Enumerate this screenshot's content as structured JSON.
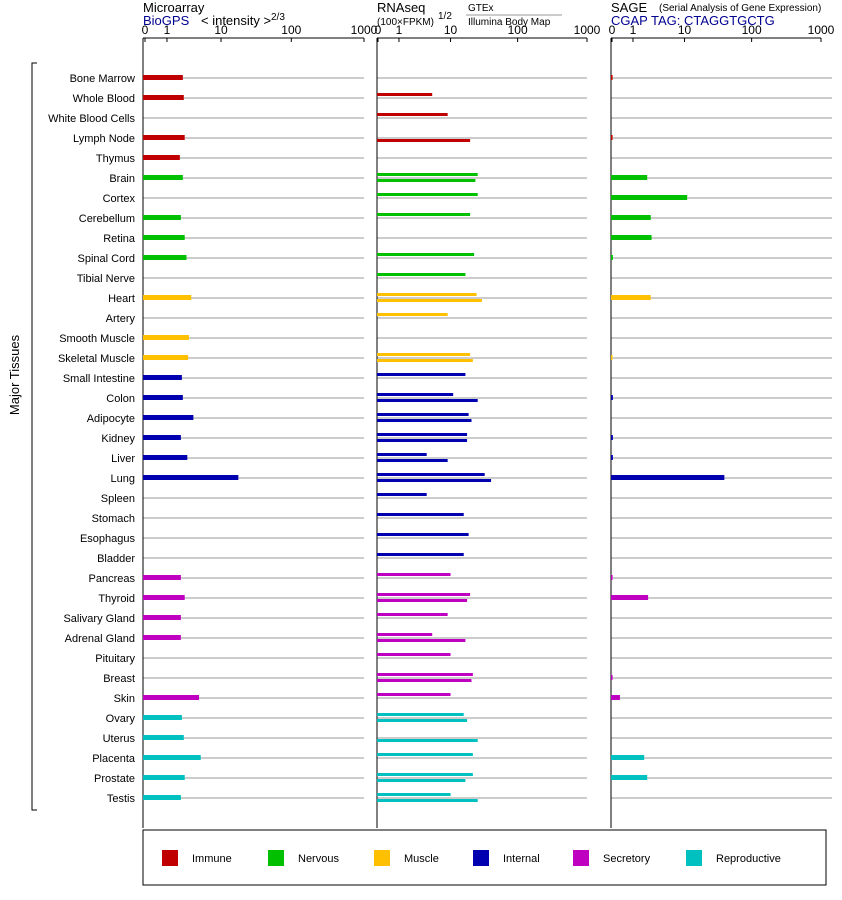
{
  "chart_data": {
    "type": "bar",
    "yaxis_label": "Major Tissues",
    "categories": [
      "Bone Marrow",
      "Whole Blood",
      "White Blood Cells",
      "Lymph Node",
      "Thymus",
      "Brain",
      "Cortex",
      "Cerebellum",
      "Retina",
      "Spinal Cord",
      "Tibial Nerve",
      "Heart",
      "Artery",
      "Smooth Muscle",
      "Skeletal Muscle",
      "Small Intestine",
      "Colon",
      "Adipocyte",
      "Kidney",
      "Liver",
      "Lung",
      "Spleen",
      "Stomach",
      "Esophagus",
      "Bladder",
      "Pancreas",
      "Thyroid",
      "Salivary Gland",
      "Adrenal Gland",
      "Pituitary",
      "Breast",
      "Skin",
      "Ovary",
      "Uterus",
      "Placenta",
      "Prostate",
      "Testis"
    ],
    "groups": [
      "Immune",
      "Immune",
      "Immune",
      "Immune",
      "Immune",
      "Nervous",
      "Nervous",
      "Nervous",
      "Nervous",
      "Nervous",
      "Nervous",
      "Muscle",
      "Muscle",
      "Muscle",
      "Muscle",
      "Internal",
      "Internal",
      "Internal",
      "Internal",
      "Internal",
      "Internal",
      "Internal",
      "Internal",
      "Internal",
      "Internal",
      "Secretory",
      "Secretory",
      "Secretory",
      "Secretory",
      "Secretory",
      "Secretory",
      "Secretory",
      "Reproductive",
      "Reproductive",
      "Reproductive",
      "Reproductive",
      "Reproductive"
    ],
    "axis": {
      "ticks": [
        0,
        1,
        10,
        100,
        1000
      ],
      "tick_labels": [
        "0",
        "1",
        "10",
        "100",
        "1000"
      ],
      "scale": "log(1+x)",
      "xlim": [
        0,
        1000
      ]
    },
    "panels": [
      {
        "title": "Microarray",
        "subtitle": "BioGPS",
        "unit_label": "< intensity >",
        "unit_sup": "2/3",
        "bars": [
          [
            2.3
          ],
          [
            2.4
          ],
          [],
          [
            2.5
          ],
          [
            2
          ],
          [
            2.3
          ],
          [],
          [
            2.1
          ],
          [
            2.5
          ],
          [
            2.7
          ],
          [],
          [
            3.3
          ],
          [],
          [
            3
          ],
          [
            2.9
          ],
          [
            2.2
          ],
          [
            2.3
          ],
          [
            3.6
          ],
          [
            2.1
          ],
          [
            2.8
          ],
          [
            18
          ],
          [],
          [],
          [],
          [],
          [
            2.1
          ],
          [
            2.5
          ],
          [
            2.1
          ],
          [
            2.1
          ],
          [],
          [],
          [
            4.5
          ],
          [
            2.2
          ],
          [
            2.4
          ],
          [
            4.8
          ],
          [
            2.5
          ],
          [
            2.1
          ]
        ]
      },
      {
        "title": "RNAseq",
        "subtitle": "(100×FPKM)",
        "unit_sup": "1/2",
        "source_a": "GTEx",
        "source_b": "Illumina Body Map",
        "bars": [
          [],
          [
            5
          ],
          [],
          [],
          [],
          [],
          [],
          [],
          [],
          [],
          [],
          [],
          [],
          [],
          [],
          [],
          [],
          [],
          [],
          [],
          [],
          [],
          [],
          [],
          [],
          [],
          [],
          [],
          [],
          [],
          [],
          [],
          [],
          [],
          [],
          [],
          []
        ],
        "bars_a": [
          [],
          [
            5
          ],
          [
            9
          ],
          [],
          [],
          [
            26
          ],
          [
            26
          ],
          [
            20
          ],
          [],
          [
            23
          ],
          [
            17
          ],
          [
            25
          ],
          [
            9
          ],
          [],
          [
            20
          ],
          [
            17
          ],
          [
            11
          ],
          [
            19
          ],
          [
            18
          ],
          [
            4
          ],
          [
            33
          ],
          [
            4
          ],
          [
            16
          ],
          [
            19
          ],
          [
            16
          ],
          [
            10
          ],
          [
            20
          ],
          [
            9
          ],
          [
            5
          ],
          [
            10
          ],
          [
            22
          ],
          [
            10
          ],
          [
            16
          ],
          [],
          [
            22
          ],
          [
            22
          ],
          [
            10
          ]
        ],
        "bars_b": [
          [],
          [],
          [],
          [
            20
          ],
          [],
          [
            24
          ],
          [],
          [],
          [],
          [],
          [],
          [
            30
          ],
          [],
          [],
          [
            22
          ],
          [],
          [
            26
          ],
          [
            21
          ],
          [
            18
          ],
          [
            9
          ],
          [
            41
          ],
          [],
          [],
          [],
          [],
          [],
          [
            18
          ],
          [],
          [
            17
          ],
          [],
          [
            21
          ],
          [],
          [
            18
          ],
          [
            26
          ],
          [],
          [
            17
          ],
          [
            26
          ]
        ]
      },
      {
        "title": "SAGE",
        "subtitle_note": "(Serial Analysis of Gene Expression)",
        "subtitle": "CGAP  TAG: CTAGGTGCTG",
        "bars": [
          [
            0.02
          ],
          [],
          [],
          [
            0.02
          ],
          [],
          [
            2.2
          ],
          [
            11
          ],
          [
            2.6
          ],
          [
            2.7
          ],
          [
            0.03
          ],
          [],
          [
            2.6
          ],
          [],
          [],
          [
            0.01
          ],
          [],
          [
            0.03
          ],
          [],
          [
            0.03
          ],
          [
            0.03
          ],
          [
            40
          ],
          [],
          [],
          [],
          [],
          [
            0.02
          ],
          [
            2.3
          ],
          [],
          [],
          [],
          [
            0.02
          ],
          [
            0.3
          ],
          [],
          [],
          [
            1.9
          ],
          [
            2.2
          ],
          []
        ]
      }
    ],
    "legend": [
      {
        "name": "Immune",
        "color": "#c00000"
      },
      {
        "name": "Nervous",
        "color": "#00c000"
      },
      {
        "name": "Muscle",
        "color": "#ffc000"
      },
      {
        "name": "Internal",
        "color": "#0000b0"
      },
      {
        "name": "Secretory",
        "color": "#c000c0"
      },
      {
        "name": "Reproductive",
        "color": "#00c0c0"
      }
    ]
  }
}
